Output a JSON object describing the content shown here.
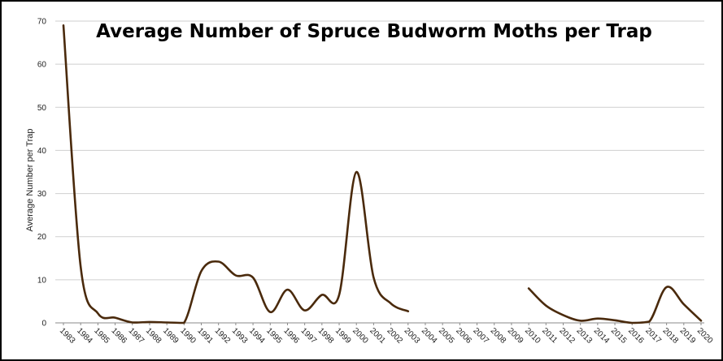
{
  "chart_data": {
    "type": "line",
    "title": "Average Number of Spruce Budworm Moths per Trap",
    "xlabel": "",
    "ylabel": "Average Number per Trap",
    "ylim": [
      0,
      70
    ],
    "yticks": [
      "0",
      "10",
      "20",
      "30",
      "40",
      "50",
      "60",
      "70"
    ],
    "categories": [
      "1983",
      "1984",
      "1985",
      "1986",
      "1987",
      "1988",
      "1989",
      "1990",
      "1991",
      "1992",
      "1993",
      "1994",
      "1995",
      "1996",
      "1997",
      "1998",
      "1999",
      "2000",
      "2001",
      "2002",
      "2003",
      "2004",
      "2005",
      "2006",
      "2007",
      "2008",
      "2009",
      "2010",
      "2011",
      "2012",
      "2013",
      "2014",
      "2015",
      "2016",
      "2017",
      "2018",
      "2019",
      "2020"
    ],
    "grid": true,
    "legend": "none",
    "smooth": true,
    "series": [
      {
        "color": "#4a2a0c",
        "values": [
          69,
          13,
          2.2,
          1.2,
          0.1,
          0.2,
          0.1,
          0,
          12,
          14.2,
          11,
          10.5,
          2.5,
          7.7,
          2.9,
          6.5,
          6.5,
          35,
          10.5,
          4.5,
          2.7,
          null,
          null,
          null,
          null,
          null,
          null,
          8,
          4,
          1.8,
          0.5,
          1,
          0.6,
          0,
          0.3,
          8.3,
          4.3,
          0.5
        ]
      }
    ]
  }
}
